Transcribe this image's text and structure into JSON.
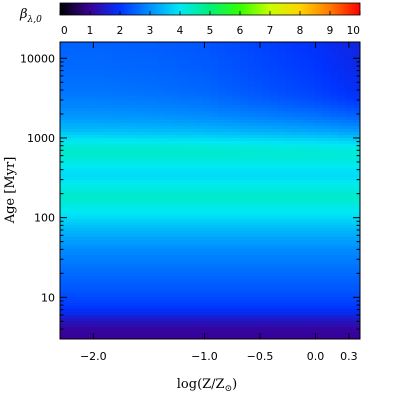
{
  "chart_data": {
    "type": "heatmap",
    "colorbar": {
      "label": "β",
      "label_subscript": "λ,0",
      "min": 0,
      "max": 10,
      "ticks": [
        0,
        1,
        2,
        3,
        4,
        5,
        6,
        7,
        8,
        9,
        10
      ],
      "tick_labels": [
        "0",
        "1",
        "2",
        "3",
        "4",
        "5",
        "6",
        "7",
        "8",
        "9",
        "10"
      ],
      "placement": "top",
      "colors": [
        "#000000",
        "#3a0096",
        "#0033ff",
        "#0090ff",
        "#00e8f4",
        "#00f07a",
        "#33ff00",
        "#c8ff00",
        "#ffd400",
        "#ff7a00",
        "#ff0000"
      ]
    },
    "xaxis": {
      "label": "log(Z/Z",
      "label_subscript": "⊙",
      "label_suffix": ")",
      "range": [
        -2.3,
        0.4
      ],
      "ticks": [
        -2.0,
        -1.0,
        -0.5,
        0.0,
        0.3
      ],
      "tick_labels": [
        "−2.0",
        "−1.0",
        "−0.5",
        "0.0",
        "0.3"
      ]
    },
    "yaxis": {
      "label": "Age [Myr]",
      "scale": "log",
      "range": [
        3,
        16000
      ],
      "ticks": [
        10,
        100,
        1000,
        10000
      ],
      "tick_labels": [
        "10",
        "100",
        "1000",
        "10000"
      ]
    },
    "grid": false,
    "age_profile": {
      "age_myr": [
        3,
        4,
        5,
        6,
        8,
        12,
        20,
        40,
        70,
        100,
        140,
        180,
        250,
        330,
        420,
        550,
        700,
        900,
        1200,
        1700,
        2500,
        4000,
        7000,
        11000,
        16000
      ],
      "beta": [
        1.0,
        1.1,
        1.35,
        1.75,
        2.1,
        2.35,
        2.6,
        2.95,
        3.45,
        3.85,
        4.15,
        4.35,
        4.1,
        3.85,
        3.95,
        4.25,
        4.35,
        4.05,
        3.55,
        3.15,
        2.9,
        2.7,
        2.6,
        2.55,
        2.5
      ]
    },
    "metallicity_effect": {
      "logz": [
        -2.3,
        -2.0,
        -1.5,
        -1.0,
        -0.5,
        0.0,
        0.3,
        0.4
      ],
      "old_age_offset": [
        0.0,
        0.0,
        -0.05,
        -0.15,
        -0.35,
        -0.55,
        -0.75,
        -0.8
      ]
    }
  }
}
